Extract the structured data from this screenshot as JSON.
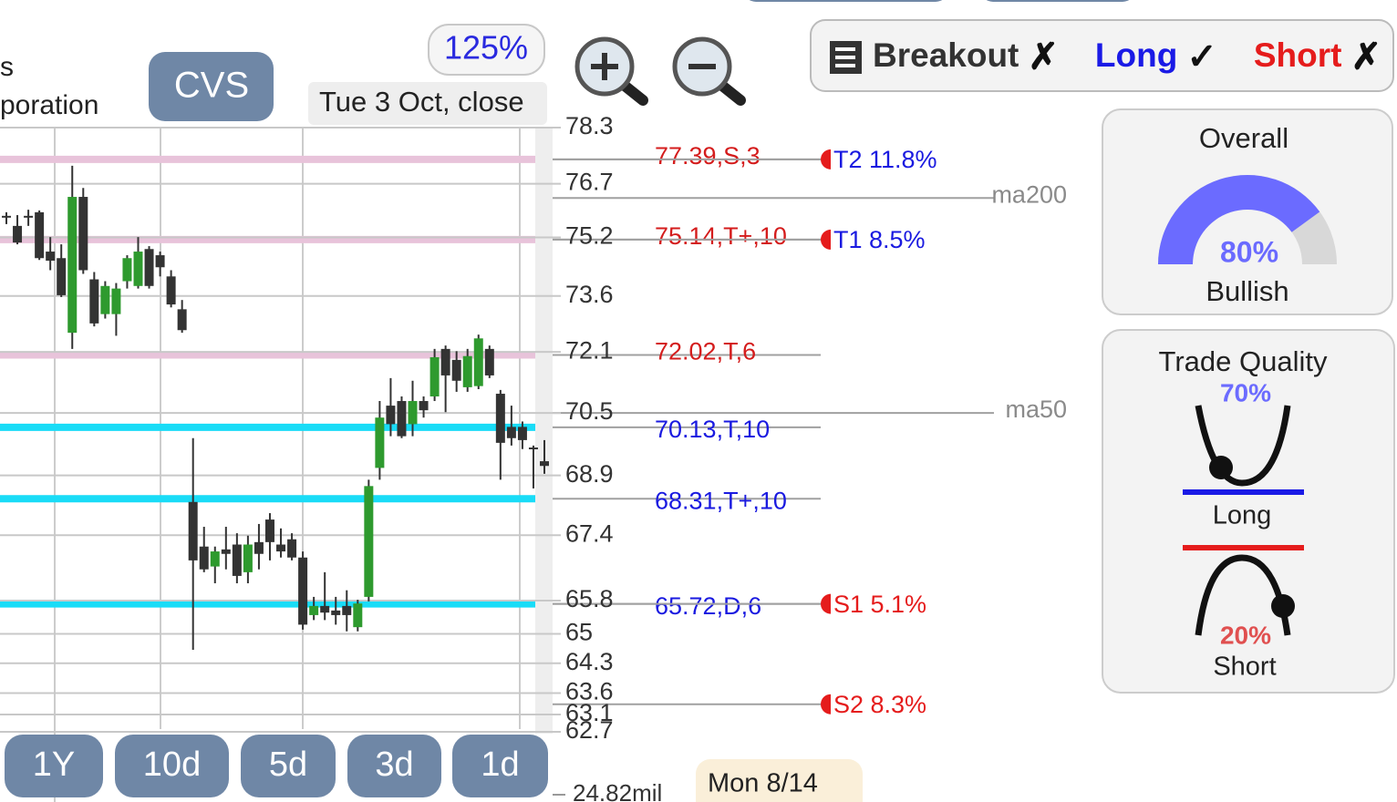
{
  "header": {
    "name_lines": [
      "s",
      "poration"
    ],
    "ticker": "CVS",
    "zoom": "125%",
    "date": "Tue 3 Oct, close"
  },
  "signals": [
    {
      "label": "Breakout",
      "mark": "✗",
      "color": "#333333"
    },
    {
      "label": "Long",
      "mark": "✓",
      "color": "#1a1ae6"
    },
    {
      "label": "Short",
      "mark": "✗",
      "color": "#e51c1c"
    }
  ],
  "overall": {
    "title": "Overall",
    "value": 80,
    "value_label": "80%",
    "verdict": "Bullish",
    "color": "#6b6bff"
  },
  "trade_quality": {
    "title": "Trade Quality",
    "long": {
      "value": 70,
      "value_label": "70%",
      "label": "Long"
    },
    "short": {
      "value": 20,
      "value_label": "20%",
      "label": "Short"
    }
  },
  "chart_data": {
    "type": "candlestick",
    "log_scale": true,
    "ylim": [
      62.7,
      78.3
    ],
    "yticks": [
      78.3,
      76.7,
      75.2,
      73.6,
      72.1,
      70.5,
      68.9,
      67.4,
      65.8,
      65,
      64.3,
      63.6,
      63.1,
      62.7
    ],
    "up_color": "#2e9a2e",
    "down_color": "#333333",
    "candles": [
      {
        "open": 75.8,
        "high": 75.9,
        "low": 75.57,
        "close": 75.75
      },
      {
        "open": 75.52,
        "high": 75.82,
        "low": 75.01,
        "close": 75.06
      },
      {
        "open": 75.8,
        "high": 75.97,
        "low": 75.52,
        "close": 75.75
      },
      {
        "open": 75.9,
        "high": 75.95,
        "low": 74.58,
        "close": 74.63
      },
      {
        "open": 74.81,
        "high": 75.21,
        "low": 74.3,
        "close": 74.56
      },
      {
        "open": 74.63,
        "high": 75.01,
        "low": 73.57,
        "close": 73.62
      },
      {
        "open": 72.61,
        "high": 77.21,
        "low": 72.18,
        "close": 76.33
      },
      {
        "open": 76.33,
        "high": 76.58,
        "low": 74.2,
        "close": 74.3
      },
      {
        "open": 74.05,
        "high": 74.25,
        "low": 72.78,
        "close": 72.86
      },
      {
        "open": 73.11,
        "high": 74.0,
        "low": 72.99,
        "close": 73.87
      },
      {
        "open": 73.11,
        "high": 73.95,
        "low": 72.53,
        "close": 73.8
      },
      {
        "open": 74.0,
        "high": 74.71,
        "low": 73.8,
        "close": 74.63
      },
      {
        "open": 73.87,
        "high": 75.21,
        "low": 73.8,
        "close": 74.81
      },
      {
        "open": 74.88,
        "high": 74.96,
        "low": 73.8,
        "close": 73.87
      },
      {
        "open": 74.71,
        "high": 74.81,
        "low": 74.13,
        "close": 74.38
      },
      {
        "open": 74.13,
        "high": 74.3,
        "low": 73.29,
        "close": 73.37
      },
      {
        "open": 73.24,
        "high": 73.49,
        "low": 72.61,
        "close": 72.68
      },
      {
        "open": 68.23,
        "high": 69.85,
        "low": 64.62,
        "close": 66.78
      },
      {
        "open": 67.12,
        "high": 67.61,
        "low": 66.49,
        "close": 66.56
      },
      {
        "open": 66.63,
        "high": 67.12,
        "low": 66.22,
        "close": 67.0
      },
      {
        "open": 67.05,
        "high": 67.61,
        "low": 66.56,
        "close": 66.94
      },
      {
        "open": 67.17,
        "high": 67.45,
        "low": 66.22,
        "close": 66.4
      },
      {
        "open": 66.49,
        "high": 67.39,
        "low": 66.22,
        "close": 67.17
      },
      {
        "open": 67.23,
        "high": 67.68,
        "low": 66.56,
        "close": 66.94
      },
      {
        "open": 67.79,
        "high": 67.95,
        "low": 66.78,
        "close": 67.23
      },
      {
        "open": 67.17,
        "high": 67.57,
        "low": 66.85,
        "close": 67.0
      },
      {
        "open": 67.3,
        "high": 67.45,
        "low": 66.78,
        "close": 66.85
      },
      {
        "open": 66.85,
        "high": 67.0,
        "low": 65.1,
        "close": 65.22
      },
      {
        "open": 65.45,
        "high": 65.89,
        "low": 65.33,
        "close": 65.67
      },
      {
        "open": 65.67,
        "high": 66.49,
        "low": 65.33,
        "close": 65.51
      },
      {
        "open": 65.56,
        "high": 65.89,
        "low": 65.22,
        "close": 65.45
      },
      {
        "open": 65.67,
        "high": 66.05,
        "low": 65.06,
        "close": 65.45
      },
      {
        "open": 65.16,
        "high": 65.82,
        "low": 65.06,
        "close": 65.73
      },
      {
        "open": 65.89,
        "high": 68.79,
        "low": 65.78,
        "close": 68.63
      },
      {
        "open": 69.09,
        "high": 70.81,
        "low": 68.79,
        "close": 70.38
      },
      {
        "open": 70.69,
        "high": 71.41,
        "low": 69.9,
        "close": 70.21
      },
      {
        "open": 70.81,
        "high": 70.93,
        "low": 69.85,
        "close": 69.9
      },
      {
        "open": 70.21,
        "high": 71.34,
        "low": 69.9,
        "close": 70.81
      },
      {
        "open": 70.81,
        "high": 70.93,
        "low": 70.38,
        "close": 70.57
      },
      {
        "open": 70.93,
        "high": 72.18,
        "low": 70.81,
        "close": 71.96
      },
      {
        "open": 72.18,
        "high": 72.27,
        "low": 70.52,
        "close": 71.48
      },
      {
        "open": 71.89,
        "high": 72.12,
        "low": 71.05,
        "close": 71.34
      },
      {
        "open": 71.17,
        "high": 72.18,
        "low": 71.05,
        "close": 71.99
      },
      {
        "open": 71.2,
        "high": 72.56,
        "low": 71.12,
        "close": 72.46
      },
      {
        "open": 72.18,
        "high": 72.27,
        "low": 71.41,
        "close": 71.48
      },
      {
        "open": 71.0,
        "high": 71.1,
        "low": 68.79,
        "close": 69.73
      },
      {
        "open": 70.14,
        "high": 70.69,
        "low": 69.66,
        "close": 69.85
      },
      {
        "open": 70.14,
        "high": 70.28,
        "low": 69.57,
        "close": 69.8
      },
      {
        "open": 69.61,
        "high": 69.66,
        "low": 68.57,
        "close": 69.57
      },
      {
        "open": 69.26,
        "high": 69.8,
        "low": 68.94,
        "close": 69.14
      }
    ],
    "levels": [
      {
        "value": 77.39,
        "label": "77.39,S,3",
        "line_color": "#e8c3da",
        "label_color": "#d41c1c"
      },
      {
        "value": 75.14,
        "label": "75.14,T+,10",
        "line_color": "#e8c3da",
        "label_color": "#d41c1c"
      },
      {
        "value": 72.02,
        "label": "72.02,T,6",
        "line_color": "#e8c3da",
        "label_color": "#d41c1c"
      },
      {
        "value": 70.13,
        "label": "70.13,T,10",
        "line_color": "#19dcf7",
        "label_color": "#1a1ae0"
      },
      {
        "value": 68.31,
        "label": "68.31,T+,10",
        "line_color": "#19dcf7",
        "label_color": "#1a1ae0"
      },
      {
        "value": 65.72,
        "label": "65.72,D,6",
        "line_color": "#19dcf7",
        "label_color": "#1a1ae0"
      }
    ],
    "targets": [
      {
        "label": "T2 11.8%",
        "price": 77.39,
        "color": "#1a1ae0"
      },
      {
        "label": "T1 8.5%",
        "price": 75.14,
        "color": "#1a1ae0"
      },
      {
        "label": "S1 5.1%",
        "price": 65.72,
        "color": "#e51c1c"
      },
      {
        "label": "S2 8.3%",
        "price": 63.34,
        "color": "#e51c1c"
      }
    ],
    "moving_averages": [
      {
        "name": "ma200",
        "value": 76.3
      },
      {
        "name": "ma50",
        "value": 70.5
      }
    ],
    "volume_label": "24.82mil"
  },
  "range_buttons": [
    "1Y",
    "10d",
    "5d",
    "3d",
    "1d"
  ],
  "date_tag": "Mon 8/14"
}
